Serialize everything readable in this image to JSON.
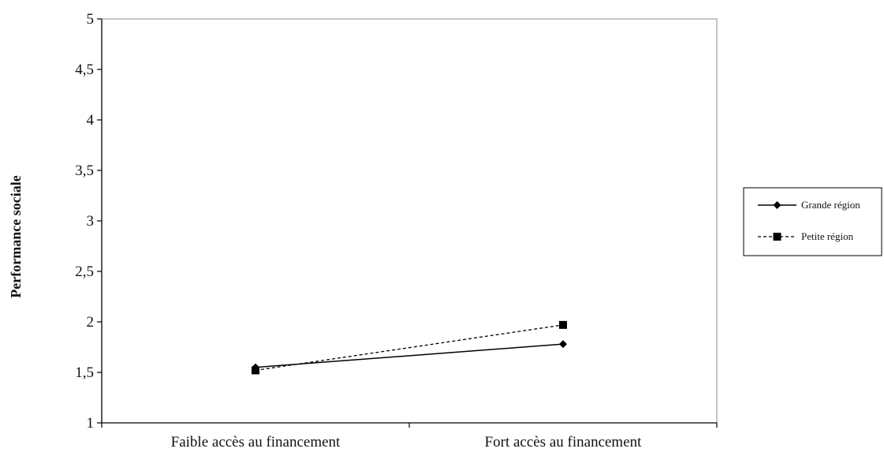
{
  "chart_data": {
    "type": "line",
    "title": "",
    "xlabel": "",
    "ylabel": "Performance sociale",
    "categories": [
      "Faible accès au financement",
      "Fort accès au financement"
    ],
    "ylim": [
      1,
      5
    ],
    "yticks": [
      "1",
      "1,5",
      "2",
      "2,5",
      "3",
      "3,5",
      "4",
      "4,5",
      "5"
    ],
    "grid": false,
    "legend_position": "right",
    "series": [
      {
        "name": "Grande région",
        "values": [
          1.55,
          1.78
        ],
        "marker": "diamond",
        "line_style": "solid",
        "color": "#000000"
      },
      {
        "name": "Petite région",
        "values": [
          1.52,
          1.97
        ],
        "marker": "square",
        "line_style": "dashed",
        "color": "#000000"
      }
    ]
  }
}
